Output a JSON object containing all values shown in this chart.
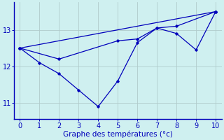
{
  "line1": {
    "x": [
      0,
      1,
      2,
      3,
      4,
      5,
      6,
      7,
      8,
      9,
      10
    ],
    "y": [
      12.5,
      12.1,
      11.8,
      11.35,
      10.9,
      11.6,
      12.65,
      13.05,
      12.9,
      12.45,
      13.5
    ],
    "color": "#0000bb",
    "lw": 0.9,
    "marker": "D",
    "ms": 1.8
  },
  "line2": {
    "x": [
      0,
      2,
      5,
      6,
      7,
      8,
      10
    ],
    "y": [
      12.5,
      12.2,
      12.7,
      12.75,
      13.05,
      13.1,
      13.5
    ],
    "color": "#0000bb",
    "lw": 0.9,
    "marker": "D",
    "ms": 1.8
  },
  "line3": {
    "x": [
      0,
      10
    ],
    "y": [
      12.5,
      13.5
    ],
    "color": "#0000bb",
    "lw": 0.9,
    "marker": "D",
    "ms": 1.8
  },
  "xlim": [
    -0.3,
    10.3
  ],
  "ylim": [
    10.55,
    13.75
  ],
  "yticks": [
    11,
    12,
    13
  ],
  "xticks": [
    0,
    1,
    2,
    3,
    4,
    5,
    6,
    7,
    8,
    9,
    10
  ],
  "xlabel": "Graphe des températures (°c)",
  "xlabel_color": "#0000bb",
  "bg_color": "#cff0f0",
  "grid_color": "#b0cccc",
  "tick_color": "#0000bb",
  "tick_label_color": "#0000bb",
  "xlabel_fontsize": 7.5,
  "tick_fontsize": 7
}
